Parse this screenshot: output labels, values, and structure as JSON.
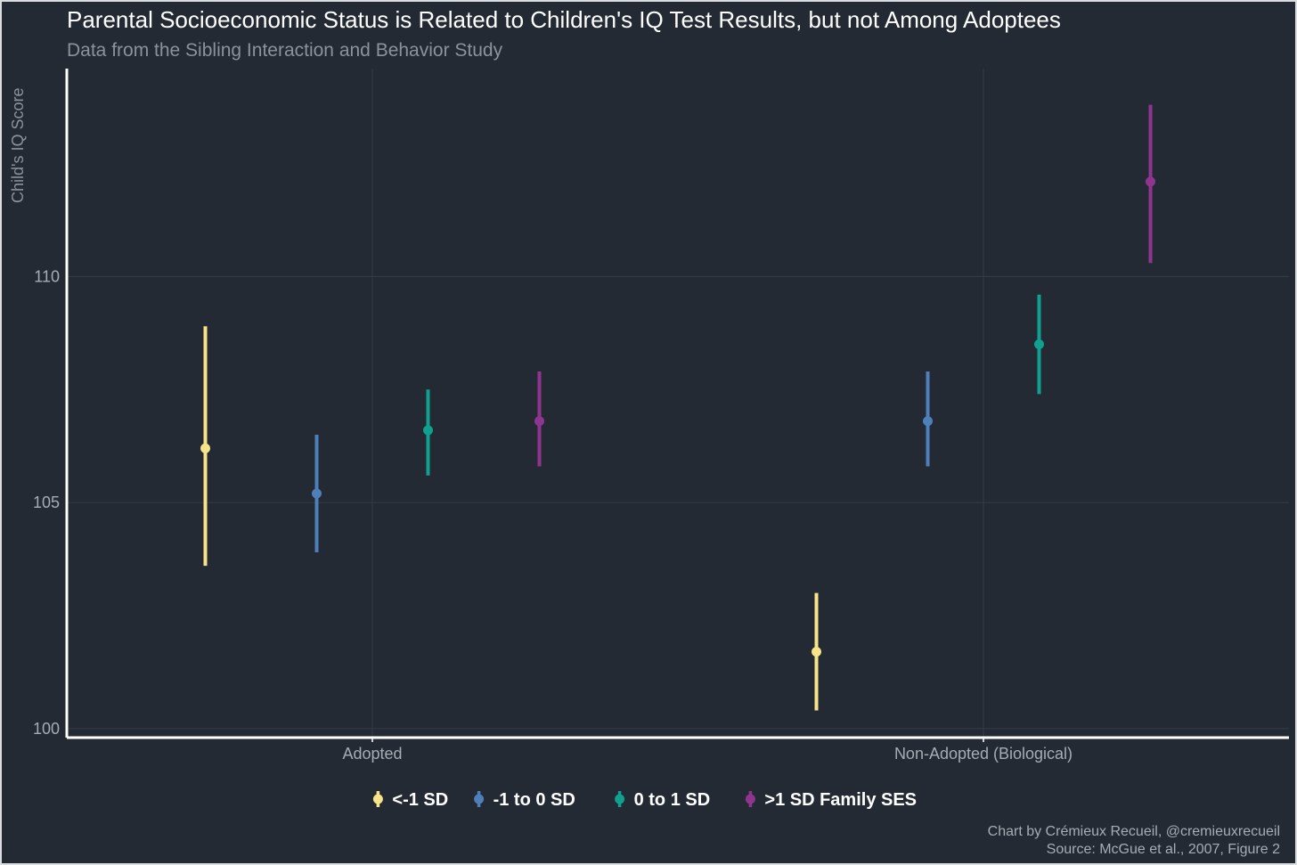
{
  "chart_data": {
    "type": "errorbar",
    "title": "Parental Socioeconomic Status is Related to Children's IQ Test Results, but not Among Adoptees",
    "subtitle": "Data from the Sibling Interaction and Behavior Study",
    "xlabel": "",
    "ylabel": "Child's IQ Score",
    "categories": [
      "Adopted",
      "Non-Adopted (Biological)"
    ],
    "ylim": [
      99.8,
      114.6
    ],
    "yticks": [
      100,
      105,
      110
    ],
    "grid": true,
    "legend_position": "bottom",
    "legend_suffix": "Family SES",
    "series": [
      {
        "name": "<-1 SD",
        "color": "#f7e38a",
        "mean": [
          106.2,
          101.7
        ],
        "lower": [
          103.6,
          100.4
        ],
        "upper": [
          108.9,
          103.0
        ]
      },
      {
        "name": "-1 to 0 SD",
        "color": "#4e7fb8",
        "mean": [
          105.2,
          106.8
        ],
        "lower": [
          103.9,
          105.8
        ],
        "upper": [
          106.5,
          107.9
        ]
      },
      {
        "name": "0 to 1 SD",
        "color": "#10a08f",
        "mean": [
          106.6,
          108.5
        ],
        "lower": [
          105.6,
          107.4
        ],
        "upper": [
          107.5,
          109.6
        ]
      },
      {
        "name": ">1 SD",
        "color": "#8f3590",
        "mean": [
          106.8,
          112.1
        ],
        "lower": [
          105.8,
          110.3
        ],
        "upper": [
          107.9,
          113.8
        ]
      }
    ],
    "caption_line1": "Chart by Crémieux Recueil, @cremieuxrecueil",
    "caption_line2": "Source: McGue et al., 2007, Figure 2"
  }
}
